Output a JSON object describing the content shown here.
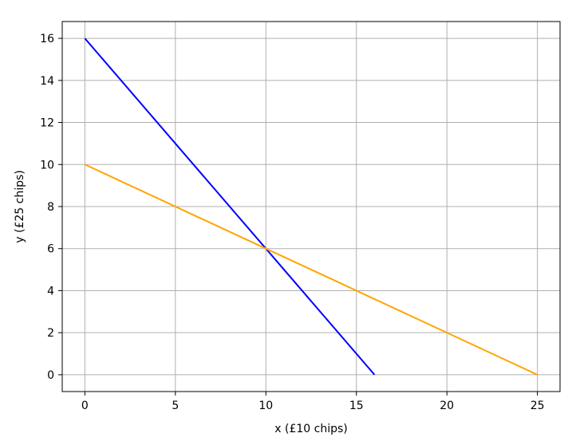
{
  "chart_data": {
    "type": "line",
    "title": "",
    "xlabel": "x (£10 chips)",
    "ylabel": "y (£25 chips)",
    "xlim": [
      -1.25,
      26.25
    ],
    "ylim": [
      -0.8,
      16.8
    ],
    "xticks": [
      0,
      5,
      10,
      15,
      20,
      25
    ],
    "yticks": [
      0,
      2,
      4,
      6,
      8,
      10,
      12,
      14,
      16
    ],
    "grid": true,
    "series": [
      {
        "color": "#0000ff",
        "x": [
          0,
          16
        ],
        "y": [
          16,
          0
        ]
      },
      {
        "color": "#ffa500",
        "x": [
          0,
          25
        ],
        "y": [
          10,
          0
        ]
      }
    ]
  }
}
